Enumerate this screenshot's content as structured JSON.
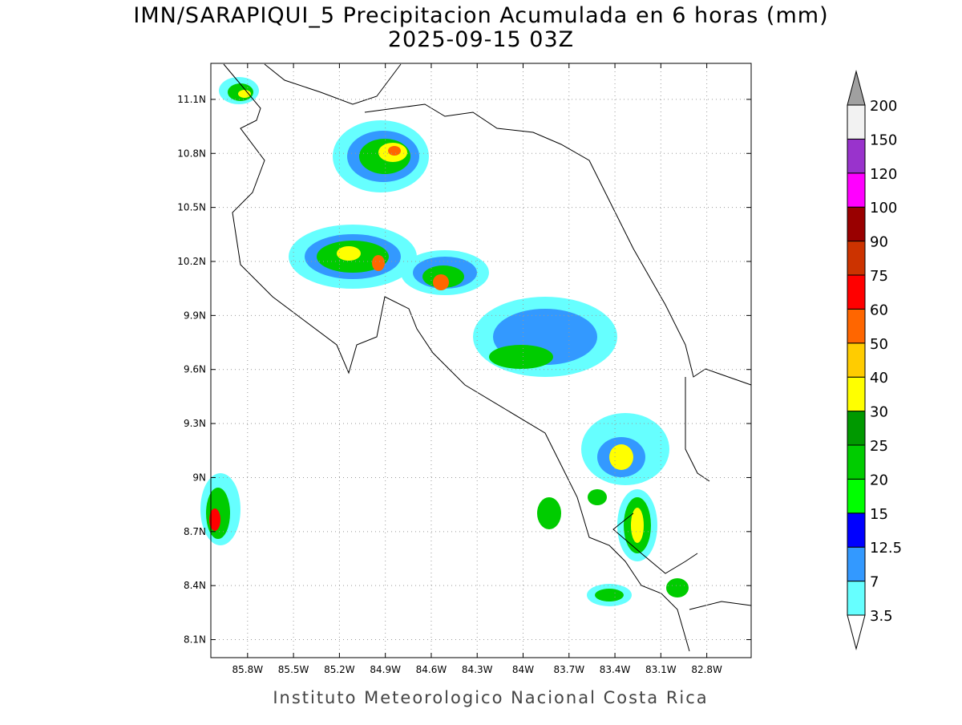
{
  "title": "IMN/SARAPIQUI_5 Precipitacion Acumulada en 6 horas (mm)",
  "subtitle": "2025-09-15 03Z",
  "footer": "Instituto Meteorologico Nacional Costa Rica",
  "map": {
    "xlim": [
      -86.04,
      -82.51
    ],
    "ylim": [
      8.0,
      11.3
    ],
    "xticks": [
      {
        "value": -85.8,
        "label": "85.8W"
      },
      {
        "value": -85.5,
        "label": "85.5W"
      },
      {
        "value": -85.2,
        "label": "85.2W"
      },
      {
        "value": -84.9,
        "label": "84.9W"
      },
      {
        "value": -84.6,
        "label": "84.6W"
      },
      {
        "value": -84.3,
        "label": "84.3W"
      },
      {
        "value": -84,
        "label": "84W"
      },
      {
        "value": -83.7,
        "label": "83.7W"
      },
      {
        "value": -83.4,
        "label": "83.4W"
      },
      {
        "value": -83.1,
        "label": "83.1W"
      },
      {
        "value": -82.8,
        "label": "82.8W"
      }
    ],
    "yticks": [
      {
        "value": 8.1,
        "label": "8.1N"
      },
      {
        "value": 8.4,
        "label": "8.4N"
      },
      {
        "value": 8.7,
        "label": "8.7N"
      },
      {
        "value": 9,
        "label": "9N"
      },
      {
        "value": 9.3,
        "label": "9.3N"
      },
      {
        "value": 9.6,
        "label": "9.6N"
      },
      {
        "value": 9.9,
        "label": "9.9N"
      },
      {
        "value": 10.2,
        "label": "10.2N"
      },
      {
        "value": 10.5,
        "label": "10.5N"
      },
      {
        "value": 10.8,
        "label": "10.8N"
      },
      {
        "value": 11.1,
        "label": "11.1N"
      }
    ],
    "grid": true
  },
  "colorbar": {
    "levels": [
      3.5,
      7,
      12.5,
      15,
      20,
      25,
      30,
      40,
      50,
      60,
      75,
      90,
      100,
      120,
      150,
      200
    ],
    "colors": [
      "#ffffff",
      "#66ffff",
      "#3399ff",
      "#0000ff",
      "#00ff00",
      "#00cc00",
      "#009900",
      "#ffff00",
      "#ffcc00",
      "#ff6600",
      "#ff0000",
      "#cc3300",
      "#990000",
      "#ff00ff",
      "#9933cc",
      "#f2f2f2",
      "#a0a0a0"
    ]
  }
}
